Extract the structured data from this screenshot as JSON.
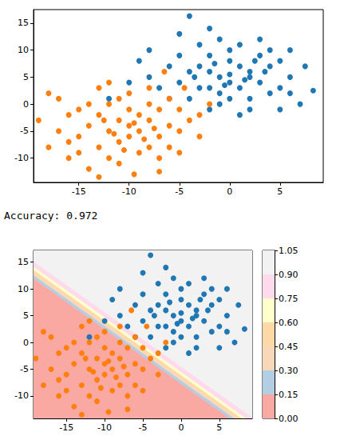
{
  "chart_data": [
    {
      "type": "scatter",
      "xlim": [
        -19.5,
        9.3
      ],
      "ylim": [
        -14.5,
        17.5
      ],
      "xticks": [
        -15,
        -10,
        -5,
        0,
        5
      ],
      "yticks": [
        -10,
        -5,
        0,
        5,
        10,
        15
      ],
      "grid": false,
      "series": [
        {
          "color": "#1f77b4",
          "values": [
            [
              -1,
              5
            ],
            [
              0,
              4
            ],
            [
              -2,
              6
            ],
            [
              1,
              7
            ],
            [
              -3,
              3
            ],
            [
              2,
              5
            ],
            [
              0,
              8
            ],
            [
              -1,
              2
            ],
            [
              3,
              4
            ],
            [
              -4,
              6
            ],
            [
              1,
              3
            ],
            [
              -2,
              9
            ],
            [
              2,
              1
            ],
            [
              -5,
              4
            ],
            [
              4,
              7
            ],
            [
              0,
              10
            ],
            [
              -3,
              7
            ],
            [
              3,
              9
            ],
            [
              -1,
              0
            ],
            [
              5,
              3
            ],
            [
              -6,
              7
            ],
            [
              1,
              11
            ],
            [
              -2,
              3
            ],
            [
              2,
              6
            ],
            [
              0,
              1
            ],
            [
              -4,
              1
            ],
            [
              4,
              2
            ],
            [
              -3,
              11
            ],
            [
              6,
              5
            ],
            [
              -7,
              3
            ],
            [
              2,
              -1
            ],
            [
              -1,
              12
            ],
            [
              3,
              12
            ],
            [
              -5,
              9
            ],
            [
              5,
              8
            ],
            [
              -8,
              5
            ],
            [
              1,
              -2
            ],
            [
              -2,
              -1
            ],
            [
              6,
              2
            ],
            [
              4,
              10
            ],
            [
              -6,
              1
            ],
            [
              0,
              5.5
            ],
            [
              -1.5,
              7.5
            ],
            [
              1.5,
              4.5
            ],
            [
              2.5,
              8
            ],
            [
              -3.5,
              5
            ],
            [
              -0.5,
              3.5
            ],
            [
              3.5,
              6
            ],
            [
              7.5,
              7
            ],
            [
              8.3,
              2.5
            ],
            [
              -4,
              16.3
            ],
            [
              -9,
              8
            ],
            [
              -12,
              1
            ],
            [
              -8,
              10
            ],
            [
              7,
              0
            ],
            [
              -5,
              13
            ],
            [
              5,
              -1
            ],
            [
              -10,
              4
            ],
            [
              6,
              10
            ],
            [
              -2,
              14
            ]
          ]
        },
        {
          "color": "#ff7f0e",
          "values": [
            [
              -10,
              -4
            ],
            [
              -11,
              -3
            ],
            [
              -9,
              -5
            ],
            [
              -12,
              -5
            ],
            [
              -8,
              -3
            ],
            [
              -10,
              -1
            ],
            [
              -13,
              -2
            ],
            [
              -7,
              -6
            ],
            [
              -11,
              -7
            ],
            [
              -9,
              -2
            ],
            [
              -14,
              -4
            ],
            [
              -6,
              -4
            ],
            [
              -12,
              0
            ],
            [
              -8,
              -8
            ],
            [
              -10,
              -6
            ],
            [
              -15,
              -6
            ],
            [
              -7,
              -1
            ],
            [
              -13,
              -8
            ],
            [
              -11,
              1
            ],
            [
              -5,
              -5
            ],
            [
              -16,
              -2
            ],
            [
              -9,
              -9
            ],
            [
              -12,
              -10
            ],
            [
              -6,
              -8
            ],
            [
              -14,
              0
            ],
            [
              -8,
              0
            ],
            [
              -17,
              -5
            ],
            [
              -4,
              -3
            ],
            [
              -10,
              2
            ],
            [
              -11,
              -11
            ],
            [
              -15,
              -9
            ],
            [
              -7,
              -10
            ],
            [
              -13,
              3
            ],
            [
              -5,
              -1
            ],
            [
              -18,
              2
            ],
            [
              -9.5,
              -13
            ],
            [
              -13,
              -13.5
            ],
            [
              -7,
              -12.5
            ],
            [
              -2,
              0
            ],
            [
              -6.5,
              6
            ],
            [
              -4.5,
              3
            ],
            [
              -16,
              -10
            ],
            [
              -18,
              -8
            ],
            [
              -3,
              -6
            ],
            [
              -12,
              4
            ],
            [
              -8,
              3
            ],
            [
              -14,
              -12
            ],
            [
              -10.5,
              -8.5
            ],
            [
              -11.5,
              -5.5
            ],
            [
              -8.5,
              -6.5
            ],
            [
              -9.5,
              -3.5
            ],
            [
              -12.5,
              -3
            ],
            [
              -7.5,
              -4.5
            ],
            [
              -15,
              -1
            ],
            [
              -17,
              1
            ],
            [
              -5,
              -9
            ],
            [
              -3,
              -2
            ],
            [
              -19,
              -3
            ],
            [
              -16,
              -7
            ],
            [
              -6,
              1
            ]
          ]
        }
      ]
    },
    {
      "type": "contour",
      "title": "Accuracy: 0.972",
      "xlim": [
        -19.3,
        9.3
      ],
      "ylim": [
        -14.2,
        17.2
      ],
      "xticks": [
        -15,
        -10,
        -5,
        0,
        5
      ],
      "yticks": [
        -10,
        -5,
        0,
        5,
        10,
        15
      ],
      "grid": false,
      "contour": {
        "levels": [
          0,
          0.15,
          0.3,
          0.45,
          0.6,
          0.75,
          0.9,
          1.05
        ],
        "colors": [
          "#f9a9a2",
          "#b3cde3",
          "#f9d7b9",
          "#fed9a6",
          "#ffffcc",
          "#fddaec",
          "#f2f2f2"
        ],
        "regions": [
          [
            [
              -25,
              -40
            ],
            [
              -25,
              17.8
            ],
            [
              15,
              -23.0
            ],
            [
              15,
              -40
            ]
          ],
          [
            [
              -25,
              17.8
            ],
            [
              -25,
              18.4
            ],
            [
              15,
              -22.4
            ],
            [
              15,
              -23.0
            ]
          ],
          [
            [
              -25,
              18.4
            ],
            [
              -25,
              18.9
            ],
            [
              15,
              -21.9
            ],
            [
              15,
              -22.4
            ]
          ],
          [
            [
              -25,
              18.9
            ],
            [
              -25,
              19.4
            ],
            [
              15,
              -21.4
            ],
            [
              15,
              -21.9
            ]
          ],
          [
            [
              -25,
              19.4
            ],
            [
              -25,
              20.0
            ],
            [
              15,
              -20.8
            ],
            [
              15,
              -21.4
            ]
          ],
          [
            [
              -25,
              20.0
            ],
            [
              -25,
              21.0
            ],
            [
              15,
              -19.8
            ],
            [
              15,
              -20.8
            ]
          ],
          [
            [
              -25,
              21.0
            ],
            [
              -25,
              40
            ],
            [
              15,
              40
            ],
            [
              15,
              -19.8
            ]
          ]
        ]
      },
      "colorbar": {
        "ylim": [
          0,
          1.05
        ],
        "yticks": [
          {
            "value": 0,
            "label": "0.00"
          },
          0.15,
          {
            "value": 0.3,
            "label": "0.30"
          },
          0.45,
          {
            "value": 0.6,
            "label": "0.60"
          },
          0.75,
          {
            "value": 0.9,
            "label": "0.90"
          },
          1.05
        ]
      },
      "series": [
        {
          "type": "scatter",
          "color": "#1f77b4",
          "values": [
            [
              -1,
              5
            ],
            [
              0,
              4
            ],
            [
              -2,
              6
            ],
            [
              1,
              7
            ],
            [
              -3,
              3
            ],
            [
              2,
              5
            ],
            [
              0,
              8
            ],
            [
              -1,
              2
            ],
            [
              3,
              4
            ],
            [
              -4,
              6
            ],
            [
              1,
              3
            ],
            [
              -2,
              9
            ],
            [
              2,
              1
            ],
            [
              -5,
              4
            ],
            [
              4,
              7
            ],
            [
              0,
              10
            ],
            [
              -3,
              7
            ],
            [
              3,
              9
            ],
            [
              -1,
              0
            ],
            [
              5,
              3
            ],
            [
              -6,
              7
            ],
            [
              1,
              11
            ],
            [
              -2,
              3
            ],
            [
              2,
              6
            ],
            [
              0,
              1
            ],
            [
              -4,
              1
            ],
            [
              4,
              2
            ],
            [
              -3,
              11
            ],
            [
              6,
              5
            ],
            [
              -7,
              3
            ],
            [
              2,
              -1
            ],
            [
              -1,
              12
            ],
            [
              3,
              12
            ],
            [
              -5,
              9
            ],
            [
              5,
              8
            ],
            [
              -8,
              5
            ],
            [
              1,
              -2
            ],
            [
              -2,
              -1
            ],
            [
              6,
              2
            ],
            [
              4,
              10
            ],
            [
              -6,
              1
            ],
            [
              0,
              5.5
            ],
            [
              -1.5,
              7.5
            ],
            [
              1.5,
              4.5
            ],
            [
              2.5,
              8
            ],
            [
              -3.5,
              5
            ],
            [
              -0.5,
              3.5
            ],
            [
              3.5,
              6
            ],
            [
              7.5,
              7
            ],
            [
              8.3,
              2.5
            ],
            [
              -4,
              16.3
            ],
            [
              -9,
              8
            ],
            [
              -12,
              1
            ],
            [
              -8,
              10
            ],
            [
              7,
              0
            ],
            [
              -5,
              13
            ],
            [
              5,
              -1
            ],
            [
              -10,
              4
            ],
            [
              6,
              10
            ],
            [
              -2,
              14
            ]
          ]
        },
        {
          "type": "scatter",
          "color": "#ff7f0e",
          "values": [
            [
              -10,
              -4
            ],
            [
              -11,
              -3
            ],
            [
              -9,
              -5
            ],
            [
              -12,
              -5
            ],
            [
              -8,
              -3
            ],
            [
              -10,
              -1
            ],
            [
              -13,
              -2
            ],
            [
              -7,
              -6
            ],
            [
              -11,
              -7
            ],
            [
              -9,
              -2
            ],
            [
              -14,
              -4
            ],
            [
              -6,
              -4
            ],
            [
              -12,
              0
            ],
            [
              -8,
              -8
            ],
            [
              -10,
              -6
            ],
            [
              -15,
              -6
            ],
            [
              -7,
              -1
            ],
            [
              -13,
              -8
            ],
            [
              -11,
              1
            ],
            [
              -5,
              -5
            ],
            [
              -16,
              -2
            ],
            [
              -9,
              -9
            ],
            [
              -12,
              -10
            ],
            [
              -6,
              -8
            ],
            [
              -14,
              0
            ],
            [
              -8,
              0
            ],
            [
              -17,
              -5
            ],
            [
              -4,
              -3
            ],
            [
              -10,
              2
            ],
            [
              -11,
              -11
            ],
            [
              -15,
              -9
            ],
            [
              -7,
              -10
            ],
            [
              -13,
              3
            ],
            [
              -5,
              -1
            ],
            [
              -18,
              2
            ],
            [
              -9.5,
              -13
            ],
            [
              -13,
              -13.5
            ],
            [
              -7,
              -12.5
            ],
            [
              -2,
              0
            ],
            [
              -6.5,
              6
            ],
            [
              -4.5,
              3
            ],
            [
              -16,
              -10
            ],
            [
              -18,
              -8
            ],
            [
              -3,
              -6
            ],
            [
              -12,
              4
            ],
            [
              -8,
              3
            ],
            [
              -14,
              -12
            ],
            [
              -10.5,
              -8.5
            ],
            [
              -11.5,
              -5.5
            ],
            [
              -8.5,
              -6.5
            ],
            [
              -9.5,
              -3.5
            ],
            [
              -12.5,
              -3
            ],
            [
              -7.5,
              -4.5
            ],
            [
              -15,
              -1
            ],
            [
              -17,
              1
            ],
            [
              -5,
              -9
            ],
            [
              -3,
              -2
            ],
            [
              -19,
              -3
            ],
            [
              -16,
              -7
            ],
            [
              -6,
              1
            ]
          ]
        }
      ]
    }
  ]
}
